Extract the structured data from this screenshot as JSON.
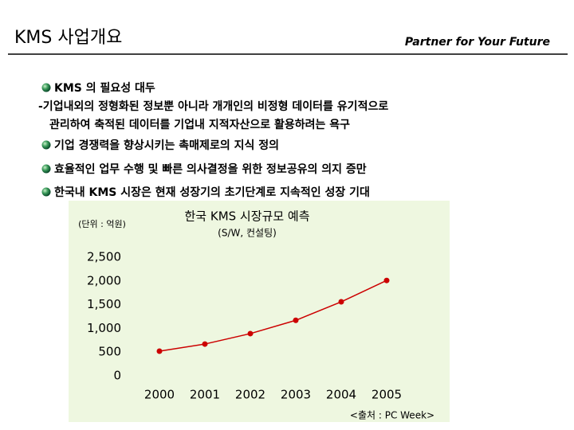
{
  "header": {
    "title": "KMS 사업개요",
    "tagline": "Partner for Your Future"
  },
  "bullets": [
    {
      "text": "KMS 의 필요성 대두",
      "detail": [
        "-기업내외의 정형화된 정보뿐 아니라 개개인의 비정형 데이터를 유기적으로",
        "관리하여 축적된 데이터를 기업내 지적자산으로 활용하려는 욕구"
      ]
    },
    {
      "text": "기업 경쟁력을 향상시키는 촉매제로의 지식 정의"
    },
    {
      "text": "효율적인 업무 수행 및 빠른 의사결정을 위한 정보공유의 의지 증만"
    },
    {
      "text": "한국내 KMS 시장은 현재 성장기의 초기단계로 지속적인 성장 기대"
    }
  ],
  "chart_data": {
    "type": "line",
    "title": "한국 KMS 시장규모 예측",
    "subtitle": "(S/W, 컨설팅)",
    "unit": "(단위 : 억원)",
    "source": "<출처 : PC Week>",
    "categories": [
      "2000",
      "2001",
      "2002",
      "2003",
      "2004",
      "2005"
    ],
    "series": [
      {
        "color": "#cc0000",
        "values": [
          520,
          670,
          890,
          1170,
          1560,
          2010
        ]
      }
    ],
    "ylim": [
      0,
      2500
    ],
    "yticks": [
      0,
      500,
      {
        "value": 1000,
        "label": "1,000"
      },
      {
        "value": 1500,
        "label": "1,500"
      },
      {
        "value": 2000,
        "label": "2,000"
      },
      {
        "value": 2500,
        "label": "2,500"
      }
    ],
    "grid": false,
    "background": "#eef7e0"
  }
}
